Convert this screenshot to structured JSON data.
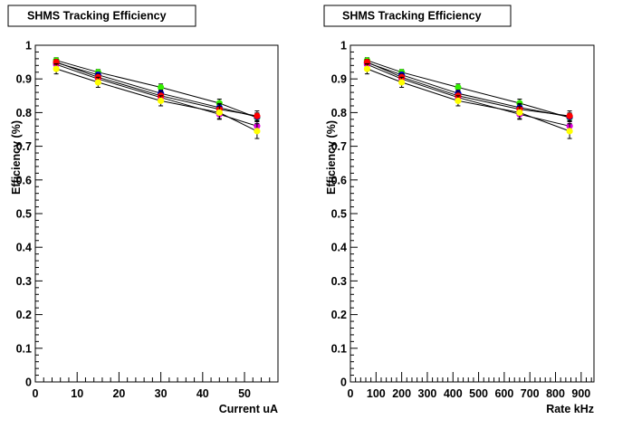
{
  "chart_data": [
    {
      "type": "scatter",
      "title": "SHMS Tracking Efficiency",
      "xlabel": "Current uA",
      "ylabel": "Efficiency (%)",
      "xlim": [
        0,
        58
      ],
      "ylim": [
        0,
        1
      ],
      "x_major_ticks": [
        0,
        10,
        20,
        30,
        40,
        50
      ],
      "x_tick_labels": [
        "0",
        "10",
        "20",
        "30",
        "40",
        "50"
      ],
      "y_major_ticks": [
        0,
        0.1,
        0.2,
        0.3,
        0.4,
        0.5,
        0.6,
        0.7,
        0.8,
        0.9,
        1
      ],
      "y_tick_labels": [
        "0",
        "0.1",
        "0.2",
        "0.3",
        "0.4",
        "0.5",
        "0.6",
        "0.7",
        "0.8",
        "0.9",
        "1"
      ],
      "x": [
        5,
        15,
        30,
        44,
        53
      ],
      "series": [
        {
          "color": "#33ee00",
          "values": [
            0.955,
            0.92,
            0.875,
            0.828,
            0.785
          ],
          "errors": [
            0.008,
            0.008,
            0.01,
            0.012,
            0.012
          ]
        },
        {
          "color": "#0000dd",
          "values": [
            0.948,
            0.912,
            0.857,
            0.815,
            0.787
          ],
          "errors": [
            0.008,
            0.008,
            0.01,
            0.012,
            0.012
          ]
        },
        {
          "color": "#dd00dd",
          "values": [
            0.943,
            0.9,
            0.845,
            0.795,
            0.76
          ],
          "errors": [
            0.008,
            0.01,
            0.012,
            0.015,
            0.015
          ]
        },
        {
          "color": "#ff0000",
          "values": [
            0.95,
            0.905,
            0.85,
            0.81,
            0.79
          ],
          "errors": [
            0.008,
            0.01,
            0.012,
            0.015,
            0.015
          ]
        },
        {
          "color": "#ffff00",
          "values": [
            0.93,
            0.89,
            0.835,
            0.8,
            0.745
          ],
          "errors": [
            0.015,
            0.015,
            0.015,
            0.018,
            0.022
          ]
        }
      ]
    },
    {
      "type": "scatter",
      "title": "SHMS Tracking Efficiency",
      "xlabel": "Rate kHz",
      "ylabel": "Efficiency (%)",
      "xlim": [
        0,
        950
      ],
      "ylim": [
        0,
        1
      ],
      "x_major_ticks": [
        0,
        100,
        200,
        300,
        400,
        500,
        600,
        700,
        800,
        900
      ],
      "x_tick_labels": [
        "0",
        "100",
        "200",
        "300",
        "400",
        "500",
        "600",
        "700",
        "800",
        "900"
      ],
      "y_major_ticks": [
        0,
        0.1,
        0.2,
        0.3,
        0.4,
        0.5,
        0.6,
        0.7,
        0.8,
        0.9,
        1
      ],
      "y_tick_labels": [
        "0",
        "0.1",
        "0.2",
        "0.3",
        "0.4",
        "0.5",
        "0.6",
        "0.7",
        "0.8",
        "0.9",
        "1"
      ],
      "x": [
        65,
        200,
        420,
        660,
        855
      ],
      "series": [
        {
          "color": "#33ee00",
          "values": [
            0.955,
            0.92,
            0.875,
            0.828,
            0.785
          ],
          "errors": [
            0.008,
            0.008,
            0.01,
            0.012,
            0.012
          ]
        },
        {
          "color": "#0000dd",
          "values": [
            0.948,
            0.912,
            0.857,
            0.815,
            0.787
          ],
          "errors": [
            0.008,
            0.008,
            0.01,
            0.012,
            0.012
          ]
        },
        {
          "color": "#dd00dd",
          "values": [
            0.943,
            0.9,
            0.845,
            0.795,
            0.76
          ],
          "errors": [
            0.008,
            0.01,
            0.012,
            0.015,
            0.015
          ]
        },
        {
          "color": "#ff0000",
          "values": [
            0.95,
            0.905,
            0.85,
            0.81,
            0.79
          ],
          "errors": [
            0.008,
            0.01,
            0.012,
            0.015,
            0.015
          ]
        },
        {
          "color": "#ffff00",
          "values": [
            0.93,
            0.89,
            0.835,
            0.8,
            0.745
          ],
          "errors": [
            0.015,
            0.015,
            0.015,
            0.018,
            0.022
          ]
        }
      ]
    }
  ]
}
